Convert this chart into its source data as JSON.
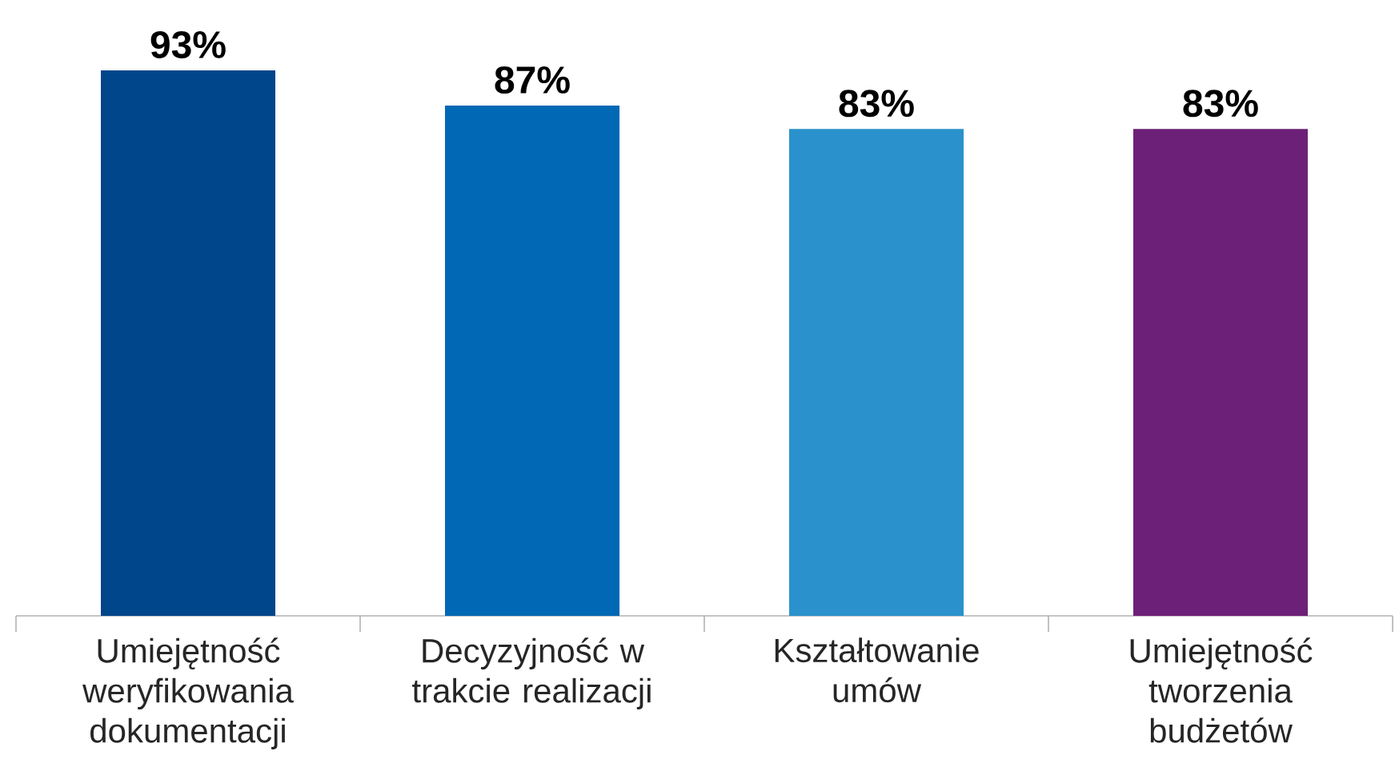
{
  "chart_data": {
    "type": "bar",
    "categories": [
      "Umiejętność weryfikowania dokumentacji",
      "Decyzyjność w trakcie realizacji",
      "Kształtowanie umów",
      "Umiejętność tworzenia budżetów"
    ],
    "values": [
      93,
      87,
      83,
      83
    ],
    "colors": [
      "#00468b",
      "#0068b4",
      "#2a91cc",
      "#6d2077"
    ],
    "value_labels": [
      "93%",
      "87%",
      "83%",
      "83%"
    ],
    "tick_labels": "x"
  }
}
